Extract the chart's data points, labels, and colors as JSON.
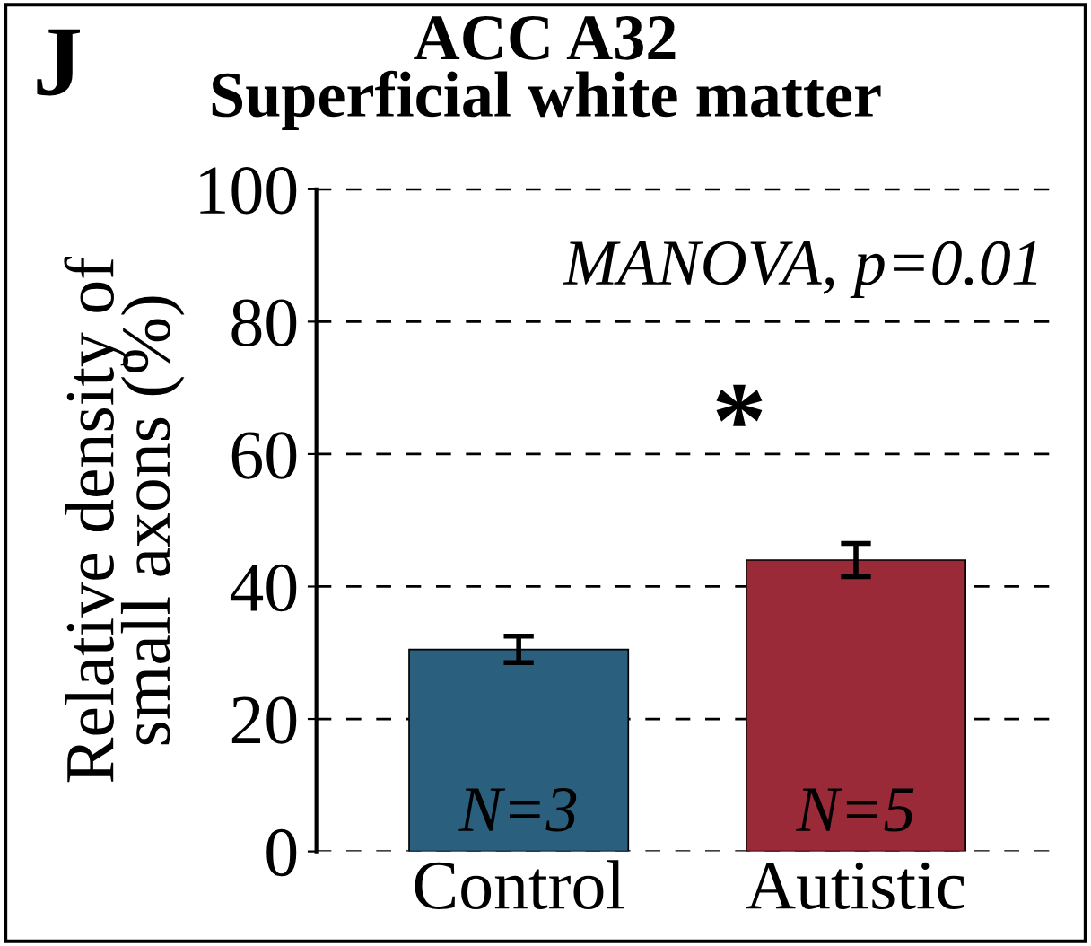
{
  "chart_data": {
    "type": "bar",
    "title": "ACC A32\nSuperficial white matter",
    "ylabel": "Relative density of\nsmall axons (%)",
    "categories": [
      "Control",
      "Autistic"
    ],
    "values": [
      30.5,
      44
    ],
    "errors": [
      2,
      2.5
    ],
    "colors": [
      "#2a5f7e",
      "#9b2a38"
    ],
    "ylim": [
      0,
      100
    ],
    "yticks": [
      0,
      20,
      40,
      60,
      80,
      100
    ],
    "grid": "y",
    "annotations": [
      "J",
      "MANOVA, p=0.01",
      "*",
      "N=3",
      "N=5"
    ]
  }
}
